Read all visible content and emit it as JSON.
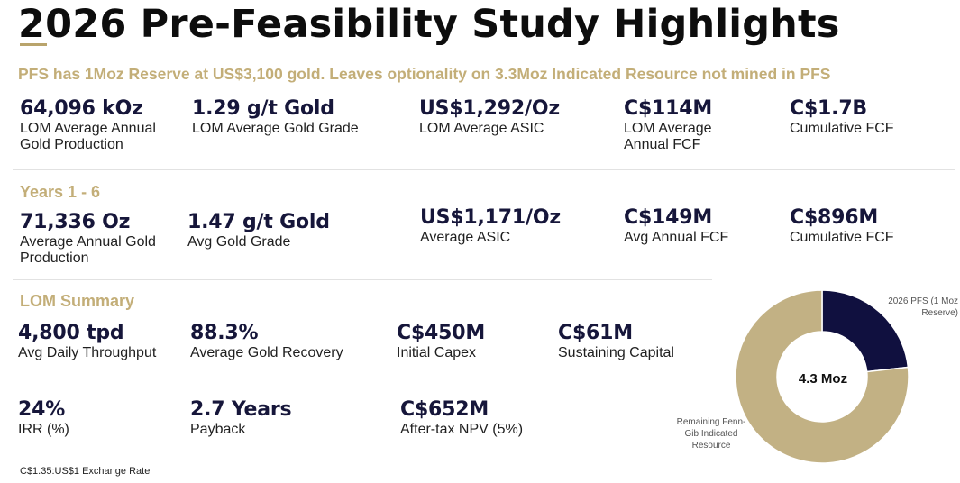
{
  "title": "2026 Pre-Feasibility Study Highlights",
  "subtitle": "PFS has 1Moz Reserve at US$3,100 gold. Leaves optionality on 3.3Moz Indicated Resource not mined in PFS",
  "lom_metrics": [
    {
      "value": "64,096 kOz",
      "label": "LOM Average Annual\nGold Production"
    },
    {
      "value": "1.29 g/t Gold",
      "label": "LOM Average Gold Grade"
    },
    {
      "value": "US$1,292/Oz",
      "label": "LOM Average ASIC"
    },
    {
      "value": "C$114M",
      "label": "LOM Average\nAnnual FCF"
    },
    {
      "value": "C$1.7B",
      "label": "Cumulative FCF"
    }
  ],
  "years_section": "Years 1 - 6",
  "years_metrics": [
    {
      "value": "71,336 Oz",
      "label": "Average Annual Gold\nProduction"
    },
    {
      "value": "1.47 g/t Gold",
      "label": "Avg Gold Grade"
    },
    {
      "value": "US$1,171/Oz",
      "label": "Average ASIC"
    },
    {
      "value": "C$149M",
      "label": "Avg Annual FCF"
    },
    {
      "value": "C$896M",
      "label": "Cumulative FCF"
    }
  ],
  "summary_section": "LOM Summary",
  "summary_row1": [
    {
      "value": "4,800 tpd",
      "label": "Avg Daily Throughput"
    },
    {
      "value": "88.3%",
      "label": "Average Gold Recovery"
    },
    {
      "value": "C$450M",
      "label": "Initial Capex"
    },
    {
      "value": "C$61M",
      "label": "Sustaining Capital"
    }
  ],
  "summary_row2": [
    {
      "value": "24%",
      "label": "IRR (%)"
    },
    {
      "value": "2.7 Years",
      "label": "Payback"
    },
    {
      "value": "C$652M",
      "label": "After-tax NPV (5%)"
    }
  ],
  "footnote": "C$1.35:US$1 Exchange Rate",
  "colors": {
    "navy": "#16163a",
    "gold": "#c3ae78",
    "chart_navy": "#10103f",
    "chart_gold": "#c2b184"
  },
  "chart_data": {
    "type": "pie",
    "center_label": "4.3 Moz",
    "categories": [
      "2026 PFS  (1 Moz\nReserve)",
      "Remaining Fenn-\nGib Indicated\nResource"
    ],
    "values": [
      1.0,
      3.3
    ],
    "unit": "Moz",
    "colors": [
      "#10103f",
      "#c2b184"
    ]
  }
}
